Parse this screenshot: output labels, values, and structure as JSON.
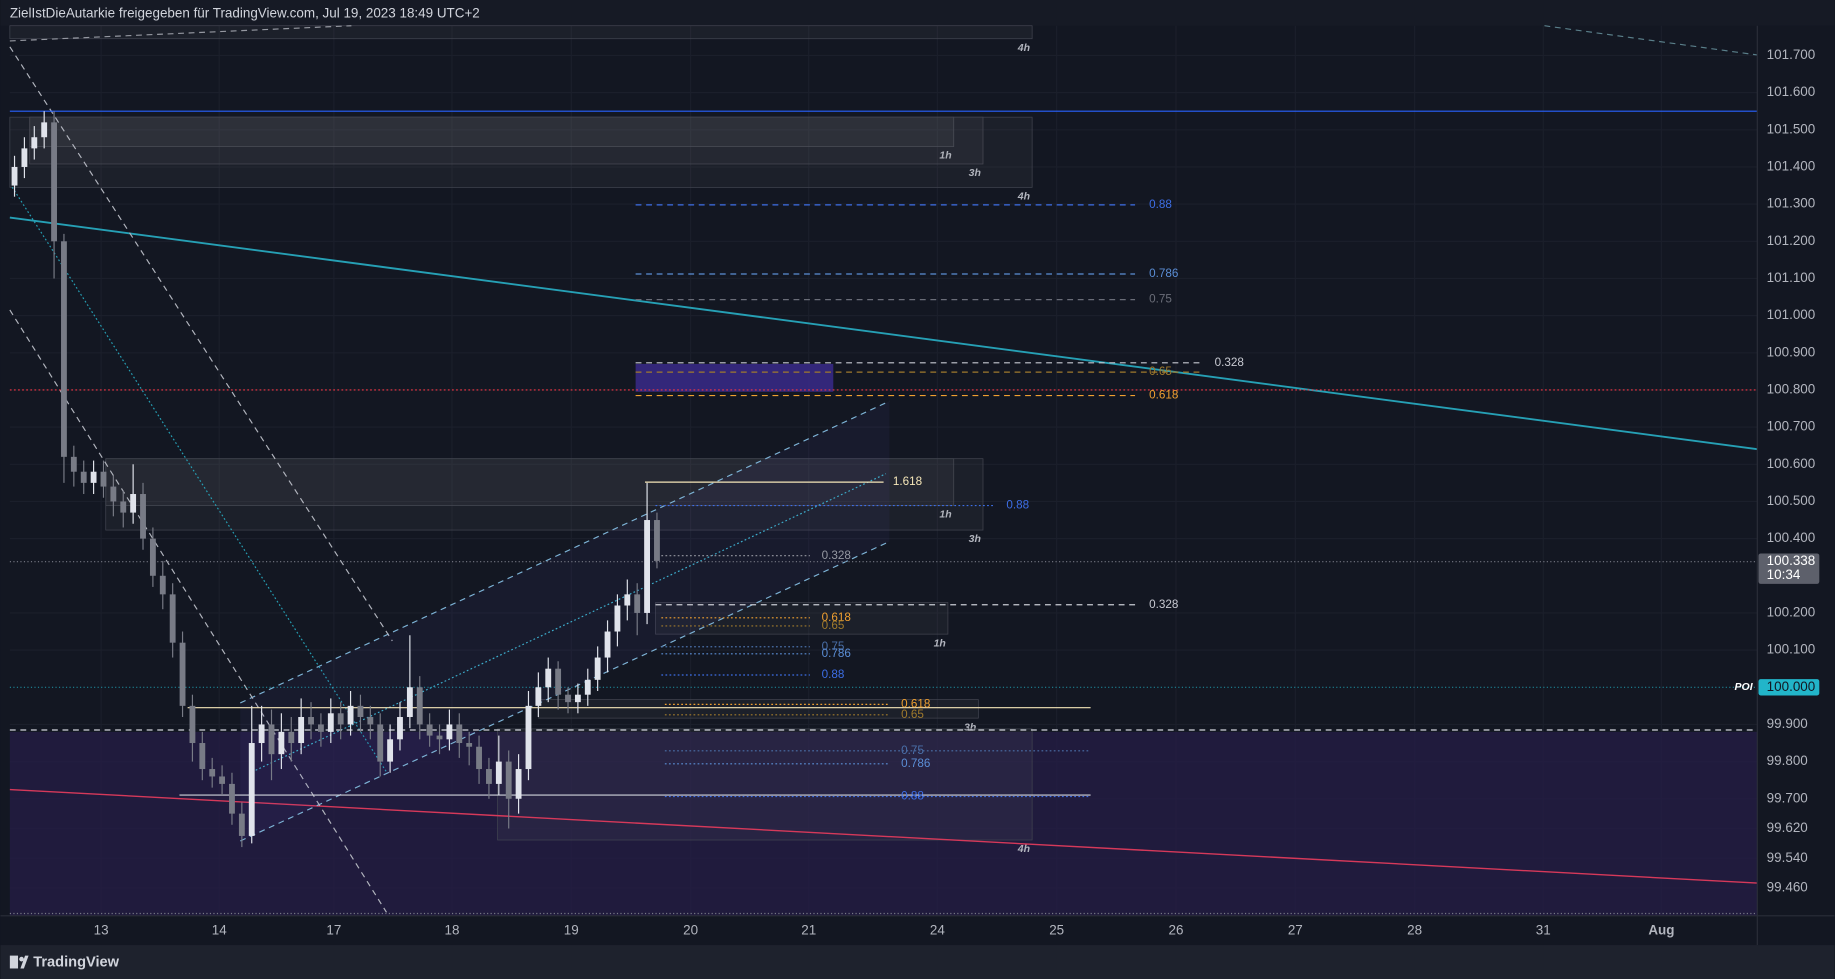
{
  "header": {
    "text": "ZielIstDieAutarkie freigegeben für TradingView.com, Jul 19, 2023 18:49 UTC+2"
  },
  "footer": {
    "brand": "TradingView"
  },
  "chart_data": {
    "type": "candlestick",
    "categories": [
      "13",
      "14",
      "17",
      "18",
      "19",
      "20",
      "21",
      "24",
      "25",
      "26",
      "27",
      "28",
      "31",
      "Aug"
    ],
    "open": [
      101.35,
      101.4,
      101.45,
      101.48,
      101.52,
      101.2,
      100.62,
      100.58,
      100.55,
      100.58,
      100.54,
      100.5,
      100.47,
      100.52,
      100.4,
      100.3,
      100.25,
      100.12,
      99.95,
      99.85,
      99.78,
      99.76,
      99.74,
      99.66,
      99.6,
      99.85,
      99.9,
      99.82,
      99.88,
      99.85,
      99.92,
      99.9,
      99.88,
      99.93,
      99.9,
      99.95,
      99.92,
      99.9,
      99.8,
      99.86,
      99.92,
      100.0,
      99.9,
      99.87,
      99.86,
      99.9,
      99.85,
      99.84,
      99.78,
      99.74,
      99.8,
      99.7,
      99.78,
      99.95,
      100.0,
      100.05,
      99.98,
      99.96,
      99.98,
      100.02,
      100.08,
      100.15,
      100.22,
      100.25,
      100.2,
      100.45
    ],
    "high": [
      101.43,
      101.48,
      101.51,
      101.55,
      101.55,
      101.22,
      100.65,
      100.61,
      100.61,
      100.61,
      100.57,
      100.53,
      100.6,
      100.55,
      100.43,
      100.34,
      100.28,
      100.15,
      99.98,
      99.88,
      99.81,
      99.79,
      99.77,
      99.69,
      99.95,
      99.95,
      99.94,
      99.93,
      99.92,
      99.97,
      99.96,
      99.93,
      99.97,
      99.96,
      99.99,
      99.98,
      99.95,
      99.93,
      99.9,
      99.96,
      100.14,
      100.03,
      99.93,
      99.9,
      99.94,
      99.93,
      99.88,
      99.87,
      99.81,
      99.87,
      99.83,
      99.82,
      99.99,
      100.04,
      100.08,
      100.07,
      100.0,
      100.01,
      100.05,
      100.11,
      100.18,
      100.25,
      100.29,
      100.28,
      100.55,
      100.47
    ],
    "low": [
      101.32,
      101.37,
      101.42,
      101.45,
      101.1,
      100.55,
      100.54,
      100.52,
      100.52,
      100.51,
      100.46,
      100.43,
      100.44,
      100.37,
      100.27,
      100.21,
      100.08,
      99.92,
      99.8,
      99.75,
      99.73,
      99.71,
      99.63,
      99.57,
      99.58,
      99.8,
      99.75,
      99.78,
      99.8,
      99.82,
      99.86,
      99.84,
      99.85,
      99.86,
      99.87,
      99.88,
      99.86,
      99.76,
      99.77,
      99.83,
      99.89,
      99.86,
      99.84,
      99.82,
      99.83,
      99.81,
      99.79,
      99.74,
      99.7,
      99.71,
      99.62,
      99.66,
      99.75,
      99.92,
      99.96,
      99.94,
      99.93,
      99.93,
      99.95,
      99.99,
      100.04,
      100.11,
      100.18,
      100.14,
      100.17,
      100.32
    ],
    "close": [
      101.4,
      101.45,
      101.48,
      101.52,
      101.2,
      100.62,
      100.58,
      100.55,
      100.58,
      100.54,
      100.5,
      100.47,
      100.52,
      100.4,
      100.3,
      100.25,
      100.12,
      99.95,
      99.85,
      99.78,
      99.76,
      99.74,
      99.66,
      99.6,
      99.85,
      99.9,
      99.82,
      99.88,
      99.85,
      99.92,
      99.9,
      99.88,
      99.93,
      99.9,
      99.95,
      99.92,
      99.9,
      99.8,
      99.86,
      99.92,
      100.0,
      99.9,
      99.87,
      99.86,
      99.9,
      99.85,
      99.84,
      99.78,
      99.74,
      99.8,
      99.7,
      99.78,
      99.95,
      100.0,
      100.05,
      99.98,
      99.96,
      99.98,
      100.02,
      100.08,
      100.15,
      100.22,
      100.25,
      100.2,
      100.45,
      100.34
    ],
    "up_color": "#e0e3eb",
    "down_color": "#787b86",
    "ylim": [
      99.385,
      101.78
    ],
    "yticks": [
      {
        "value": 101.7,
        "label": "101.700"
      },
      {
        "value": 101.6,
        "label": "101.600"
      },
      {
        "value": 101.5,
        "label": "101.500"
      },
      {
        "value": 101.4,
        "label": "101.400"
      },
      {
        "value": 101.3,
        "label": "101.300"
      },
      {
        "value": 101.2,
        "label": "101.200"
      },
      {
        "value": 101.1,
        "label": "101.100"
      },
      {
        "value": 101.0,
        "label": "101.000"
      },
      {
        "value": 100.9,
        "label": "100.900"
      },
      {
        "value": 100.8,
        "label": "100.800"
      },
      {
        "value": 100.7,
        "label": "100.700"
      },
      {
        "value": 100.6,
        "label": "100.600"
      },
      {
        "value": 100.5,
        "label": "100.500"
      },
      {
        "value": 100.4,
        "label": "100.400"
      },
      {
        "value": 100.2,
        "label": "100.200"
      },
      {
        "value": 100.1,
        "label": "100.100"
      },
      {
        "value": 99.9,
        "label": "99.900"
      },
      {
        "value": 99.8,
        "label": "99.800"
      },
      {
        "value": 99.7,
        "label": "99.700"
      },
      {
        "value": 99.62,
        "label": "99.620"
      },
      {
        "value": 99.54,
        "label": "99.540"
      },
      {
        "value": 99.46,
        "label": "99.460"
      }
    ],
    "grid": true,
    "last_price": {
      "value": 100.338,
      "label": "100.338",
      "countdown": "10:34",
      "color": "#5d606b"
    },
    "poi": {
      "value": 100,
      "label": "100.000",
      "name": "POI",
      "color": "#22b5c9"
    },
    "regions": [
      {
        "top": 99.88,
        "bottom": 99.385,
        "color": "#241d45"
      },
      {
        "top": 100.87,
        "bottom": 100.795,
        "color": "#3a2a8a"
      }
    ],
    "zones": [
      {
        "top": 101.78,
        "bottom": 101.745,
        "label": "4h"
      },
      {
        "top": 101.534,
        "bottom": 101.455,
        "label": "1h"
      },
      {
        "top": 101.534,
        "bottom": 101.408,
        "label": "3h"
      },
      {
        "top": 101.534,
        "bottom": 101.345,
        "label": "4h"
      },
      {
        "top": 100.615,
        "bottom": 100.489,
        "label": "1h"
      },
      {
        "top": 100.615,
        "bottom": 100.423,
        "label": "3h"
      },
      {
        "top": 100.228,
        "bottom": 100.143,
        "label": "1h"
      },
      {
        "top": 99.967,
        "bottom": 99.917,
        "label": "3h"
      },
      {
        "top": 99.888,
        "bottom": 99.589,
        "label": "4h"
      }
    ],
    "lines": [
      {
        "value": 101.55,
        "color": "#2962ff",
        "style": "solid"
      },
      {
        "value": 100.8,
        "color": "#f23645",
        "style": "dotted"
      },
      {
        "value": 99.885,
        "color": "#d1d4dc",
        "style": "dashed"
      },
      {
        "value": 99.945,
        "color": "#f5e6b8",
        "style": "solid"
      },
      {
        "value": 99.71,
        "color": "#d1d4dc",
        "style": "solid"
      }
    ],
    "levels": [
      {
        "value": 101.298,
        "label": "0.88",
        "color": "#3d6ee6",
        "style": "dashed"
      },
      {
        "value": 101.112,
        "label": "0.786",
        "color": "#5b8ed6",
        "style": "dashed"
      },
      {
        "value": 101.043,
        "label": "0.75",
        "color": "#6a6d78",
        "style": "dashed"
      },
      {
        "value": 100.873,
        "label": "0.328",
        "color": "#c8cad2",
        "style": "dashed"
      },
      {
        "value": 100.848,
        "label": "0.65",
        "color": "#a07a2c",
        "style": "dashed"
      },
      {
        "value": 100.785,
        "label": "0.618",
        "color": "#f0a030",
        "style": "dashed"
      },
      {
        "value": 100.552,
        "label": "1.618",
        "color": "#f5e6b8",
        "style": "solid"
      },
      {
        "value": 100.489,
        "label": "0.88",
        "color": "#3d6ee6",
        "style": "dotted"
      },
      {
        "value": 100.354,
        "label": "0.328",
        "color": "#9598a1",
        "style": "dotted"
      },
      {
        "value": 100.222,
        "label": "0.328",
        "color": "#c8cad2",
        "style": "dashed"
      },
      {
        "value": 100.187,
        "label": "0.618",
        "color": "#f0a030",
        "style": "dotted"
      },
      {
        "value": 100.165,
        "label": "0.65",
        "color": "#a07a2c",
        "style": "dotted"
      },
      {
        "value": 100.109,
        "label": "0.75",
        "color": "#4a6fa8",
        "style": "dotted"
      },
      {
        "value": 100.09,
        "label": "0.786",
        "color": "#5b8ed6",
        "style": "dotted"
      },
      {
        "value": 100.033,
        "label": "0.88",
        "color": "#3d6ee6",
        "style": "dotted"
      },
      {
        "value": 99.954,
        "label": "0.618",
        "color": "#f0a030",
        "style": "dotted"
      },
      {
        "value": 99.926,
        "label": "0.65",
        "color": "#a07a2c",
        "style": "dotted"
      },
      {
        "value": 99.829,
        "label": "0.75",
        "color": "#4a6fa8",
        "style": "dotted"
      },
      {
        "value": 99.794,
        "label": "0.786",
        "color": "#5b8ed6",
        "style": "dotted"
      },
      {
        "value": 99.706,
        "label": "0.88",
        "color": "#3d6ee6",
        "style": "dotted"
      }
    ]
  }
}
